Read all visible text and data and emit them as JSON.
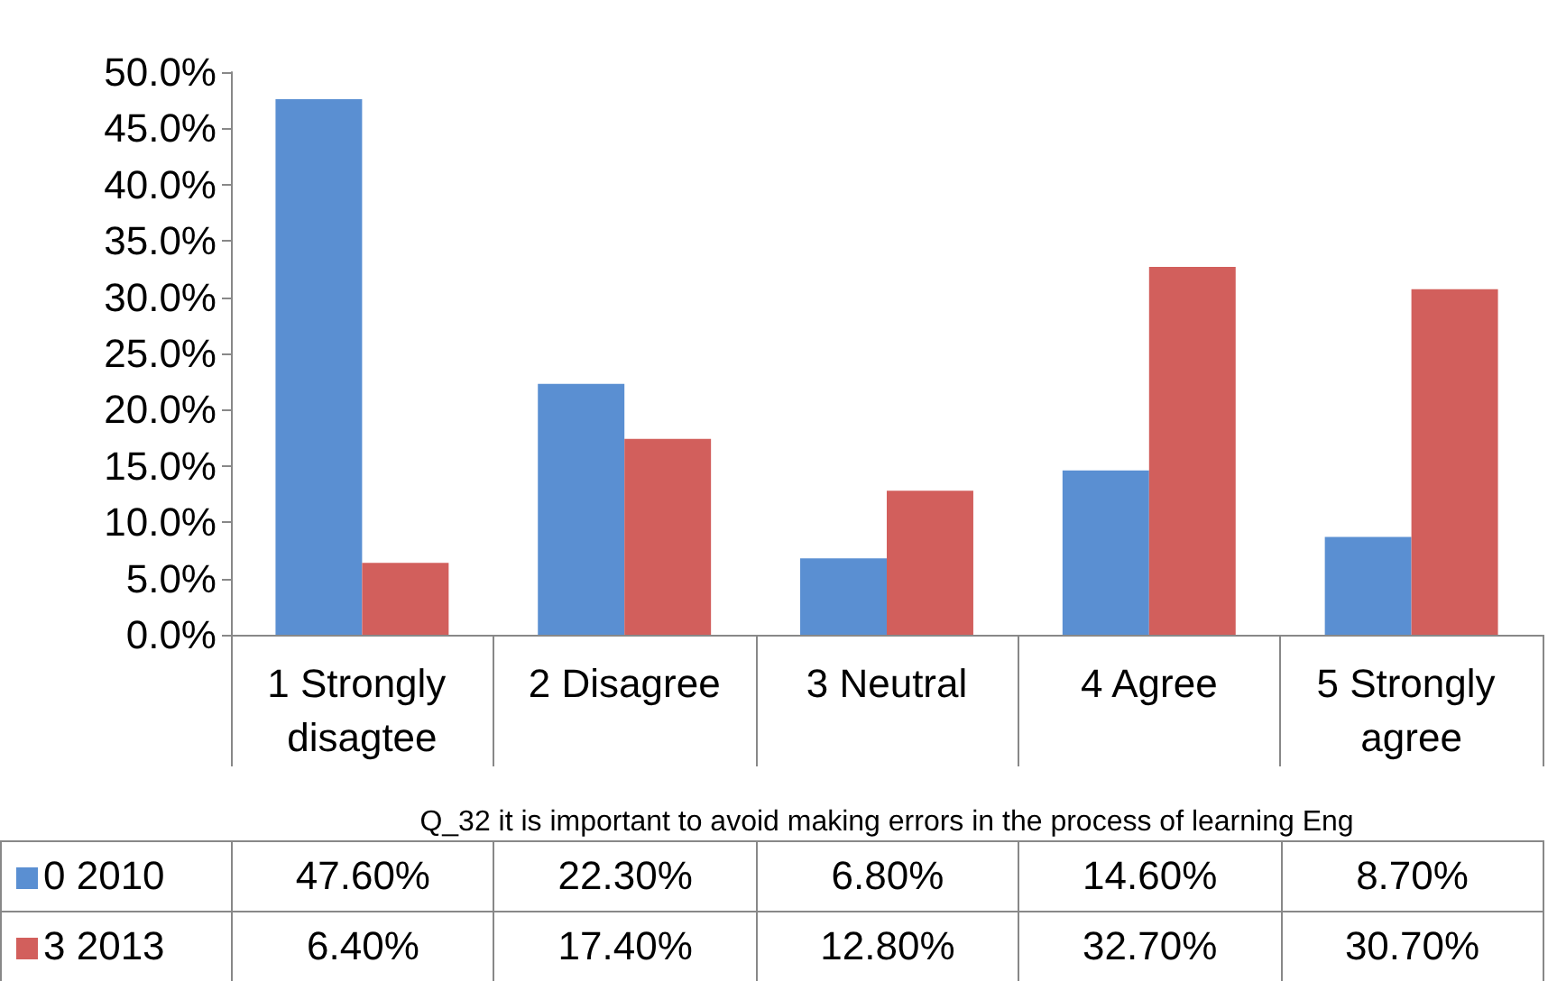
{
  "chart_data": {
    "type": "bar",
    "xlabel": "Q_32 it is important to avoid making errors in the process of learning Eng",
    "categories": [
      "1 Strongly disagtee",
      "2 Disagree",
      "3 Neutral",
      "4 Agree",
      "5 Strongly agree"
    ],
    "series": [
      {
        "name": "0 2010",
        "color": "#5a8fd2",
        "values": [
          47.6,
          22.3,
          6.8,
          14.6,
          8.7
        ],
        "value_labels": [
          "47.60%",
          "22.30%",
          "6.80%",
          "14.60%",
          "8.70%"
        ]
      },
      {
        "name": "3 2013",
        "color": "#d25f5c",
        "values": [
          6.4,
          17.4,
          12.8,
          32.7,
          30.7
        ],
        "value_labels": [
          "6.40%",
          "17.40%",
          "12.80%",
          "32.70%",
          "30.70%"
        ]
      }
    ],
    "ylim": [
      0,
      50
    ],
    "yticks": [
      {
        "value": 0,
        "label": "0.0%"
      },
      {
        "value": 5,
        "label": "5.0%"
      },
      {
        "value": 10,
        "label": "10.0%"
      },
      {
        "value": 15,
        "label": "15.0%"
      },
      {
        "value": 20,
        "label": "20.0%"
      },
      {
        "value": 25,
        "label": "25.0%"
      },
      {
        "value": 30,
        "label": "30.0%"
      },
      {
        "value": 35,
        "label": "35.0%"
      },
      {
        "value": 40,
        "label": "40.0%"
      },
      {
        "value": 45,
        "label": "45.0%"
      },
      {
        "value": 50,
        "label": "50.0%"
      }
    ],
    "grid": false,
    "legend": "bottom left"
  }
}
